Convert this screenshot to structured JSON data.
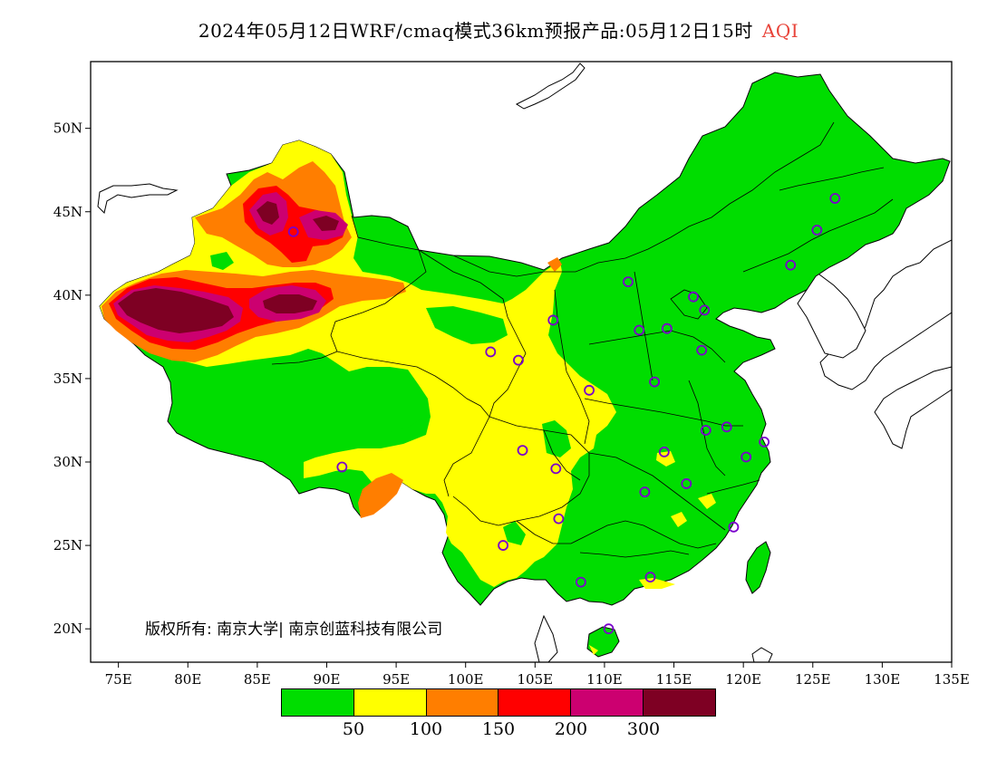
{
  "title": {
    "text": "2024年05月12日WRF/cmaq模式36km预报产品:05月12日15时",
    "variable": "AQI",
    "variable_color": "#e8443a"
  },
  "map": {
    "projection": "lat-lon",
    "lon_range": [
      73,
      135
    ],
    "lat_range": [
      18,
      54
    ],
    "lon_ticks": [
      "75E",
      "80E",
      "85E",
      "90E",
      "95E",
      "100E",
      "105E",
      "110E",
      "115E",
      "120E",
      "125E",
      "130E",
      "135E"
    ],
    "lat_ticks": [
      "20N",
      "25N",
      "30N",
      "35N",
      "40N",
      "45N",
      "50N"
    ],
    "background_color": "#ffffff",
    "coastline_color": "#000000"
  },
  "legend": {
    "colors": [
      "#00dd00",
      "#ffff00",
      "#ff7e00",
      "#ff0000",
      "#cc0070",
      "#7e0023"
    ],
    "labels": [
      "50",
      "100",
      "150",
      "200",
      "300"
    ]
  },
  "copyright": "版权所有: 南京大学| 南京创蓝科技有限公司",
  "stations": [
    {
      "lon": 87.6,
      "lat": 43.8
    },
    {
      "lon": 91.1,
      "lat": 29.7
    },
    {
      "lon": 101.8,
      "lat": 36.6
    },
    {
      "lon": 103.8,
      "lat": 36.1
    },
    {
      "lon": 106.3,
      "lat": 38.5
    },
    {
      "lon": 108.9,
      "lat": 34.3
    },
    {
      "lon": 104.1,
      "lat": 30.7
    },
    {
      "lon": 106.5,
      "lat": 29.6
    },
    {
      "lon": 106.7,
      "lat": 26.6
    },
    {
      "lon": 102.7,
      "lat": 25.0
    },
    {
      "lon": 108.3,
      "lat": 22.8
    },
    {
      "lon": 110.3,
      "lat": 20.0
    },
    {
      "lon": 113.3,
      "lat": 23.1
    },
    {
      "lon": 112.9,
      "lat": 28.2
    },
    {
      "lon": 114.3,
      "lat": 30.6
    },
    {
      "lon": 115.9,
      "lat": 28.7
    },
    {
      "lon": 117.3,
      "lat": 31.9
    },
    {
      "lon": 118.8,
      "lat": 32.1
    },
    {
      "lon": 120.2,
      "lat": 30.3
    },
    {
      "lon": 121.5,
      "lat": 31.2
    },
    {
      "lon": 119.3,
      "lat": 26.1
    },
    {
      "lon": 113.6,
      "lat": 34.8
    },
    {
      "lon": 117.0,
      "lat": 36.7
    },
    {
      "lon": 114.5,
      "lat": 38.0
    },
    {
      "lon": 112.5,
      "lat": 37.9
    },
    {
      "lon": 111.7,
      "lat": 40.8
    },
    {
      "lon": 116.4,
      "lat": 39.9
    },
    {
      "lon": 117.2,
      "lat": 39.1
    },
    {
      "lon": 123.4,
      "lat": 41.8
    },
    {
      "lon": 125.3,
      "lat": 43.9
    },
    {
      "lon": 126.6,
      "lat": 45.8
    }
  ]
}
